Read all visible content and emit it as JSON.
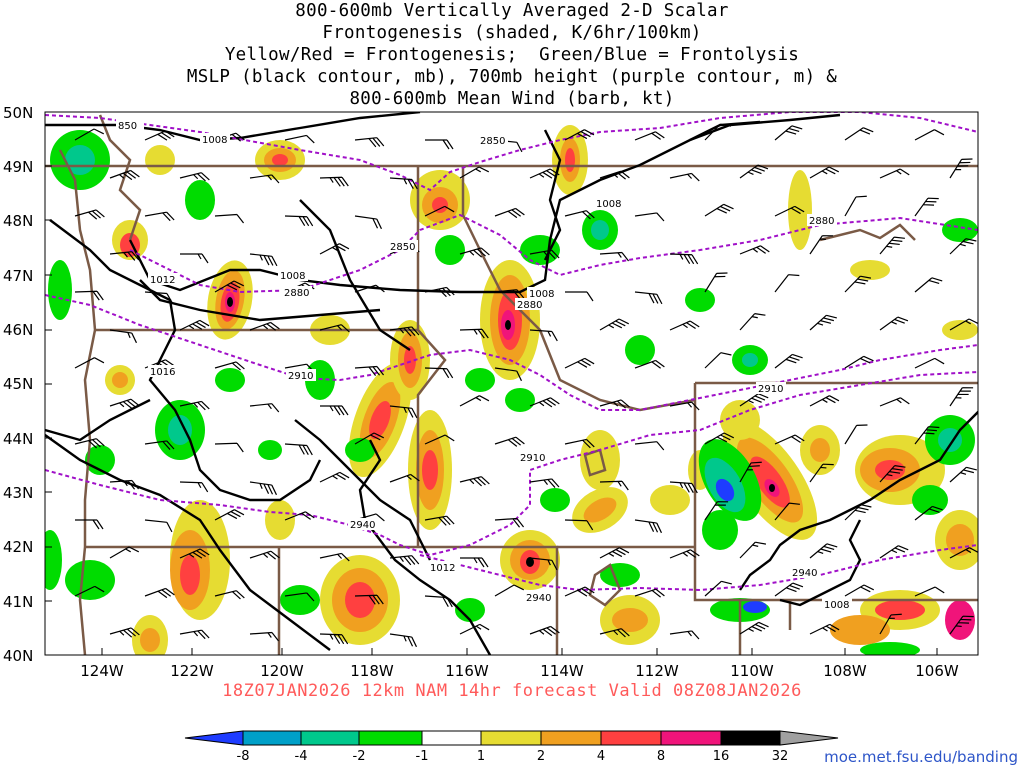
{
  "title": {
    "lines": [
      "800-600mb Vertically Averaged 2-D Scalar",
      "Frontogenesis (shaded, K/6hr/100km)",
      "Yellow/Red = Frontogenesis;  Green/Blue = Frontolysis",
      "MSLP (black contour, mb), 700mb height (purple contour, m) &",
      "800-600mb Mean Wind (barb, kt)"
    ]
  },
  "axes": {
    "lat_labels": [
      "50N",
      "49N",
      "48N",
      "47N",
      "46N",
      "45N",
      "44N",
      "43N",
      "42N",
      "41N",
      "40N"
    ],
    "lon_labels": [
      "124W",
      "122W",
      "120W",
      "118W",
      "116W",
      "114W",
      "112W",
      "110W",
      "108W",
      "106W"
    ]
  },
  "forecast": {
    "text": "18Z07JAN2026 12km NAM 14hr forecast Valid 08Z08JAN2026",
    "color": "#ff5a5a"
  },
  "contour_labels": {
    "mslp": [
      "850",
      "1008",
      "1012",
      "1008",
      "1008",
      "1016",
      "1012",
      "1008",
      "1008"
    ],
    "height": [
      "2850",
      "2850",
      "2880",
      "2880",
      "2880",
      "2910",
      "2910",
      "2910",
      "2940",
      "2940",
      "2940"
    ]
  },
  "colorbar": {
    "ticks": [
      "-8",
      "-4",
      "-2",
      "-1",
      "1",
      "2",
      "4",
      "8",
      "16",
      "32"
    ],
    "colors": [
      "#1e3cff",
      "#00a0c8",
      "#00c88c",
      "#00dc00",
      "#ffffff",
      "#e6dc32",
      "#f0a020",
      "#ff4040",
      "#f0147a",
      "#000000",
      "#a0a0a0"
    ]
  },
  "colors": {
    "state_border": "#7a5a46",
    "mslp_contour": "#000000",
    "height_contour": "#a010c8",
    "frontogenesis_weak": "#e6dc32",
    "frontogenesis_mod": "#f0a020",
    "frontogenesis_strong": "#ff4040",
    "frontogenesis_vstrong": "#f0147a",
    "frontolysis_weak": "#00dc00",
    "frontolysis_mod": "#00c88c",
    "frontolysis_strong": "#1e3cff"
  },
  "credit": "moe.met.fsu.edu/banding"
}
